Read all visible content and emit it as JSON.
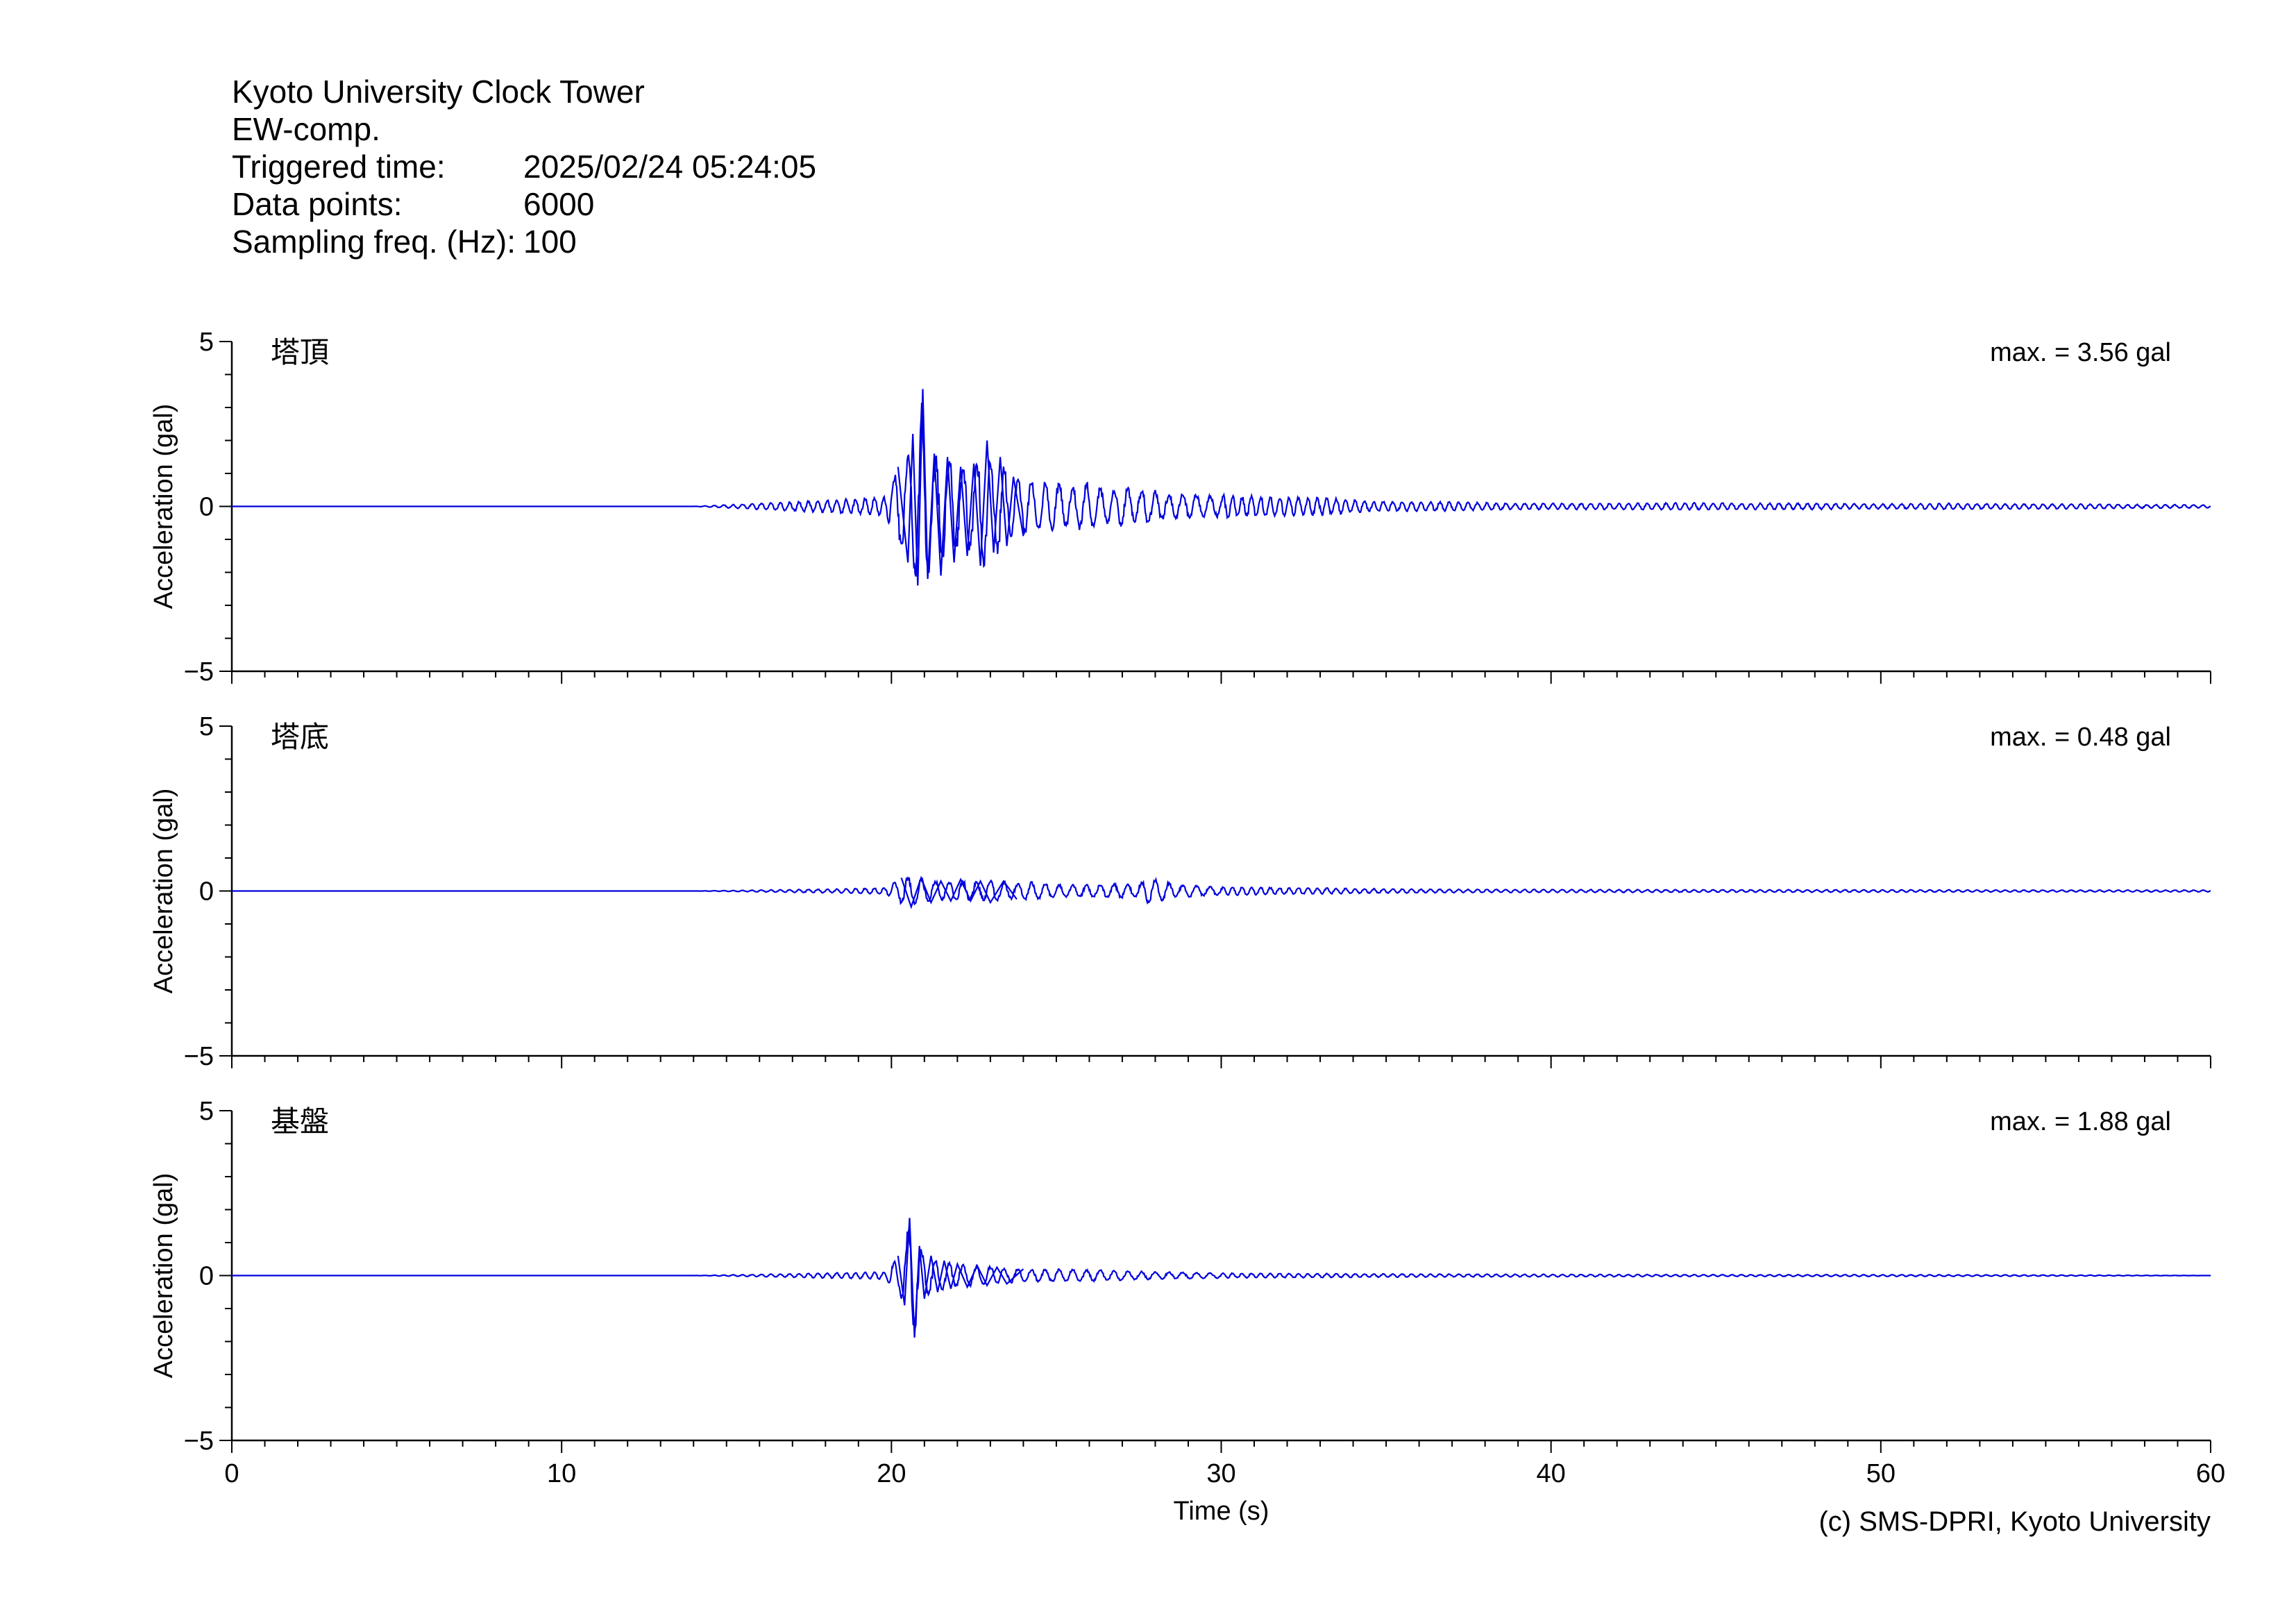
{
  "header": {
    "station": "Kyoto University Clock Tower",
    "component": "EW-comp.",
    "rows": [
      {
        "key": "Triggered time:",
        "value": "2025/02/24 05:24:05"
      },
      {
        "key": "Data points:",
        "value": "6000"
      },
      {
        "key": "Sampling freq. (Hz):",
        "value": "100"
      }
    ]
  },
  "credit": "(c) SMS-DPRI, Kyoto University",
  "chart_data": {
    "type": "line",
    "xlabel": "Time (s)",
    "xlim": [
      0,
      60
    ],
    "xticks": [
      0,
      10,
      20,
      30,
      40,
      50,
      60
    ],
    "ylabel": "Acceleration (gal)",
    "ylim": [
      -5,
      5
    ],
    "yticks": [
      -5,
      0,
      5
    ],
    "ytick_labels": [
      "−5",
      "0",
      "5"
    ],
    "line_color": "#0000dd",
    "panels": [
      {
        "name": "塔頂",
        "max_label": "max. = 3.56 gal",
        "x": [
          0,
          14,
          15,
          16,
          17,
          18,
          19,
          19.8,
          20.2,
          20.5,
          20.65,
          20.8,
          20.95,
          21.1,
          21.3,
          21.5,
          21.7,
          21.9,
          22.1,
          22.3,
          22.5,
          22.7,
          22.9,
          23.1,
          23.3,
          23.5,
          23.7,
          24,
          24.3,
          24.6,
          24.9,
          25.2,
          25.5,
          25.8,
          26.1,
          26.4,
          26.7,
          27,
          27.3,
          27.6,
          27.9,
          28.2,
          28.6,
          29,
          29.4,
          29.8,
          30.2,
          30.6,
          31,
          31.5,
          32,
          32.5,
          33,
          33.5,
          34,
          35,
          36,
          37,
          38,
          39,
          40,
          42,
          44,
          46,
          48,
          50,
          52,
          54,
          56,
          58,
          60
        ],
        "y": [
          0,
          0,
          0.05,
          0.1,
          0.15,
          0.2,
          0.25,
          0.3,
          1.2,
          -1.7,
          2.2,
          -2.4,
          3.56,
          -2.2,
          1.6,
          -2.1,
          1.5,
          -1.7,
          1.2,
          -1.5,
          1.3,
          -1.8,
          2.0,
          -1.4,
          1.5,
          -1.2,
          0.9,
          -0.9,
          0.8,
          -0.8,
          0.9,
          -0.7,
          0.6,
          -0.8,
          0.7,
          -0.6,
          0.5,
          -0.7,
          0.6,
          -0.5,
          0.6,
          -0.4,
          0.4,
          -0.4,
          0.35,
          -0.35,
          0.4,
          -0.3,
          0.35,
          -0.3,
          0.3,
          -0.3,
          0.3,
          -0.25,
          0.2,
          0.15,
          -0.15,
          0.15,
          -0.12,
          0.1,
          0.1,
          -0.1,
          0.12,
          -0.1,
          0.1,
          -0.08,
          0.1,
          -0.08,
          0.08,
          -0.06,
          0.05
        ]
      },
      {
        "name": "塔底",
        "max_label": "max. = 0.48 gal",
        "x": [
          0,
          14,
          16,
          18,
          19.8,
          20.3,
          20.6,
          20.9,
          21.2,
          21.5,
          21.8,
          22.1,
          22.4,
          22.7,
          23,
          23.4,
          23.8,
          24.2,
          24.6,
          25,
          25.5,
          26,
          26.5,
          27,
          27.4,
          27.8,
          28.2,
          28.6,
          29,
          29.5,
          30,
          31,
          32,
          33,
          34,
          36,
          38,
          40,
          45,
          50,
          55,
          60
        ],
        "y": [
          0,
          0,
          0.03,
          0.06,
          0.1,
          0.4,
          -0.48,
          0.4,
          -0.35,
          0.3,
          -0.3,
          0.35,
          -0.3,
          0.3,
          -0.35,
          0.3,
          -0.25,
          0.3,
          -0.25,
          0.2,
          -0.2,
          0.2,
          -0.2,
          0.25,
          -0.2,
          0.4,
          -0.35,
          0.2,
          -0.2,
          0.15,
          -0.15,
          0.12,
          -0.1,
          0.1,
          -0.08,
          0.06,
          -0.05,
          0.05,
          -0.04,
          0.04,
          -0.03,
          0.03
        ]
      },
      {
        "name": "基盤",
        "max_label": "max. = 1.88 gal",
        "x": [
          0,
          14,
          16,
          18,
          19.8,
          20.2,
          20.4,
          20.55,
          20.7,
          20.85,
          21,
          21.2,
          21.4,
          21.6,
          21.8,
          22,
          22.3,
          22.6,
          22.9,
          23.2,
          23.5,
          24,
          24.5,
          25,
          26,
          27,
          28,
          29,
          30,
          32,
          34,
          36,
          40,
          45,
          50,
          55,
          60
        ],
        "y": [
          0,
          0,
          0.04,
          0.08,
          0.12,
          0.6,
          -0.9,
          1.75,
          -1.88,
          0.9,
          -0.7,
          0.6,
          -0.5,
          0.45,
          -0.4,
          0.35,
          -0.35,
          0.3,
          -0.3,
          0.25,
          -0.25,
          0.2,
          -0.2,
          0.2,
          -0.18,
          0.15,
          -0.12,
          0.1,
          -0.08,
          0.07,
          -0.06,
          0.05,
          -0.04,
          0.03,
          -0.03,
          0.02,
          0.0
        ]
      }
    ]
  }
}
